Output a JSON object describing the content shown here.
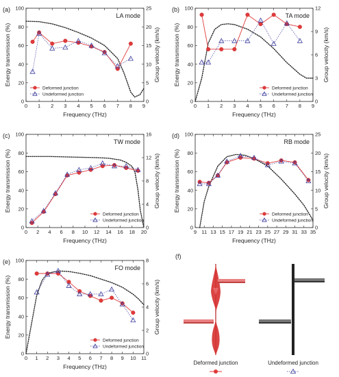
{
  "figure": {
    "panel_f": {
      "letter": "(f)",
      "deformed_caption": "Deformed junction",
      "undeformed_caption": "Undeformed junction",
      "deformed_color": "#e03a3a",
      "undeformed_color": "#333333"
    }
  },
  "chart_data": [
    {
      "id": "a",
      "letter": "(a)",
      "type": "line",
      "title": "LA mode",
      "xlabel": "Frequency (THz)",
      "ylabel": "Energy transmission (%)",
      "y2label": "Group velocity (km/s)",
      "xlim": [
        0,
        9
      ],
      "ylim": [
        0,
        100
      ],
      "y2lim": [
        0,
        25
      ],
      "xticks": [
        0,
        1,
        2,
        3,
        4,
        5,
        6,
        7,
        8,
        9
      ],
      "yticks": [
        0,
        20,
        40,
        60,
        80,
        100
      ],
      "y2ticks": [
        0,
        5,
        10,
        15,
        20,
        25
      ],
      "legend": {
        "position": "bottom-left",
        "entries": [
          "Deformed junction",
          "Undeformed junction"
        ]
      },
      "series": [
        {
          "name": "Deformed junction",
          "x": [
            0.5,
            1,
            2,
            3,
            4,
            5,
            6,
            7,
            8
          ],
          "y": [
            64,
            74,
            62,
            65,
            63,
            59,
            53,
            35,
            62
          ]
        },
        {
          "name": "Undeformed junction",
          "x": [
            0.5,
            1,
            2,
            3,
            4,
            5,
            6,
            7,
            8
          ],
          "y": [
            32,
            73,
            57,
            58,
            65,
            60,
            52,
            38,
            46
          ]
        }
      ],
      "group_velocity": {
        "x": [
          0,
          1,
          2,
          3,
          4,
          5,
          6,
          7,
          7.5,
          8,
          8.3,
          8.7,
          9
        ],
        "y": [
          21.5,
          21.4,
          20.8,
          19.8,
          18.5,
          17,
          15,
          11.5,
          7.5,
          2.5,
          1.2,
          1.8,
          3.5
        ]
      }
    },
    {
      "id": "b",
      "letter": "(b)",
      "type": "line",
      "title": "TA mode",
      "xlabel": "Frequency (THz)",
      "ylabel": "Energy transmission (%)",
      "y2label": "Group velocity (km/s)",
      "xlim": [
        0,
        9
      ],
      "ylim": [
        0,
        100
      ],
      "y2lim": [
        0,
        12
      ],
      "xticks": [
        0,
        1,
        2,
        3,
        4,
        5,
        6,
        7,
        8,
        9
      ],
      "yticks": [
        0,
        20,
        40,
        60,
        80,
        100
      ],
      "y2ticks": [
        0,
        3,
        6,
        9,
        12
      ],
      "legend": {
        "position": "bottom-right",
        "entries": [
          "Deformed junction",
          "Undeformed junction"
        ]
      },
      "series": [
        {
          "name": "Deformed junction",
          "x": [
            0.5,
            1,
            2,
            3,
            4,
            5,
            6,
            7,
            8
          ],
          "y": [
            93,
            56,
            56,
            56,
            93,
            83,
            93,
            83,
            80
          ]
        },
        {
          "name": "Undeformed junction",
          "x": [
            0.5,
            1,
            2,
            3,
            4,
            5,
            6,
            7,
            8
          ],
          "y": [
            42,
            42,
            65,
            65,
            65,
            87,
            62,
            84,
            65
          ]
        }
      ],
      "group_velocity": {
        "x": [
          0,
          0.5,
          1,
          1.5,
          2,
          2.5,
          3,
          4,
          5,
          6,
          7,
          8,
          8.5,
          9
        ],
        "y": [
          0,
          3,
          7.5,
          9.3,
          9.9,
          10,
          9.9,
          9.3,
          8.3,
          6.8,
          5,
          3.5,
          3,
          3
        ]
      }
    },
    {
      "id": "c",
      "letter": "(c)",
      "type": "line",
      "title": "TW mode",
      "xlabel": "Frequency (THz)",
      "ylabel": "Energy transmission (%)",
      "y2label": "Group velocity (km/s)",
      "xlim": [
        0,
        20
      ],
      "ylim": [
        0,
        100
      ],
      "y2lim": [
        0,
        16
      ],
      "xticks": [
        0,
        2,
        4,
        6,
        8,
        10,
        12,
        14,
        16,
        18,
        20
      ],
      "yticks": [
        0,
        20,
        40,
        60,
        80,
        100
      ],
      "y2ticks": [
        0,
        4,
        8,
        12,
        16
      ],
      "legend": {
        "position": "bottom-right",
        "entries": [
          "Deformed junction",
          "Undeformed junction"
        ]
      },
      "series": [
        {
          "name": "Deformed junction",
          "x": [
            1,
            3,
            5,
            7,
            9,
            11,
            13,
            15,
            17,
            19
          ],
          "y": [
            5,
            17,
            36,
            56,
            59,
            62,
            66,
            67,
            64,
            61
          ]
        },
        {
          "name": "Undeformed junction",
          "x": [
            1,
            3,
            5,
            7,
            9,
            11,
            13,
            15,
            17,
            19
          ],
          "y": [
            7,
            18,
            37,
            57,
            62,
            64,
            69,
            66,
            66,
            62
          ]
        }
      ],
      "group_velocity": {
        "x": [
          0,
          4,
          8,
          12,
          14,
          16,
          17,
          18,
          18.5,
          19,
          19.4,
          20
        ],
        "y": [
          12.2,
          12.2,
          12.1,
          12,
          11.9,
          11.6,
          11.2,
          10.5,
          9.5,
          6.5,
          3,
          0
        ]
      }
    },
    {
      "id": "d",
      "letter": "(d)",
      "type": "line",
      "title": "RB mode",
      "xlabel": "Frequency (THz)",
      "ylabel": "Energy transmission (%)",
      "y2label": "Group velocity (km/s)",
      "xlim": [
        9,
        35
      ],
      "ylim": [
        0,
        100
      ],
      "y2lim": [
        0,
        25
      ],
      "xticks": [
        9,
        11,
        13,
        15,
        17,
        19,
        21,
        23,
        25,
        27,
        29,
        31,
        33,
        35
      ],
      "yticks": [
        0,
        20,
        40,
        60,
        80,
        100
      ],
      "y2ticks": [
        0,
        5,
        10,
        15,
        20,
        25
      ],
      "legend": {
        "position": "bottom-right",
        "entries": [
          "Deformed junction",
          "Undeformed junction"
        ]
      },
      "series": [
        {
          "name": "Deformed junction",
          "x": [
            10,
            12,
            14,
            16,
            19,
            22,
            25,
            28,
            31,
            34
          ],
          "y": [
            49,
            48,
            56,
            70,
            75,
            74,
            69,
            72,
            70,
            51
          ]
        },
        {
          "name": "Undeformed junction",
          "x": [
            10,
            12,
            14,
            16,
            19,
            22,
            25,
            28,
            31,
            34
          ],
          "y": [
            47,
            47,
            56,
            71,
            77,
            75,
            67,
            71,
            69,
            50
          ]
        }
      ],
      "group_velocity": {
        "x": [
          10,
          11,
          12,
          14,
          16,
          18,
          20,
          22,
          25,
          28,
          31,
          33,
          35
        ],
        "y": [
          0,
          7,
          11,
          16.5,
          19,
          19.6,
          19.4,
          18.5,
          16.5,
          13,
          9,
          6,
          2
        ]
      }
    },
    {
      "id": "e",
      "letter": "(e)",
      "type": "line",
      "title": "FO mode",
      "xlabel": "Frequency (THz)",
      "ylabel": "Energy transmission (%)",
      "y2label": "Group velocity (km/s)",
      "xlim": [
        0,
        11
      ],
      "ylim": [
        0,
        100
      ],
      "y2lim": [
        0,
        8
      ],
      "xticks": [
        0,
        1,
        2,
        3,
        4,
        5,
        6,
        7,
        8,
        9,
        10,
        11
      ],
      "yticks": [
        0,
        20,
        40,
        60,
        80,
        100
      ],
      "y2ticks": [
        0,
        2,
        4,
        6,
        8
      ],
      "legend": {
        "position": "bottom-right",
        "entries": [
          "Deformed junction",
          "Undeformed junction"
        ]
      },
      "series": [
        {
          "name": "Deformed junction",
          "x": [
            1,
            2,
            3,
            4,
            5,
            6,
            7,
            8,
            9,
            10
          ],
          "y": [
            86,
            86,
            86,
            77,
            67,
            62,
            57,
            60,
            54,
            44
          ]
        },
        {
          "name": "Undeformed junction",
          "x": [
            1,
            2,
            3,
            4,
            5,
            6,
            7,
            8,
            9,
            10
          ],
          "y": [
            66,
            85,
            89,
            73,
            64,
            64,
            64,
            69,
            53,
            36
          ]
        }
      ],
      "group_velocity": {
        "x": [
          0,
          0.5,
          1,
          1.5,
          2,
          3,
          4,
          5,
          6,
          7,
          8,
          9,
          10,
          10.5,
          11
        ],
        "y": [
          0,
          2.5,
          5,
          6.3,
          6.9,
          7.1,
          7.05,
          6.9,
          6.7,
          6.4,
          6.1,
          5.7,
          5.1,
          4.7,
          4.2
        ]
      }
    }
  ]
}
